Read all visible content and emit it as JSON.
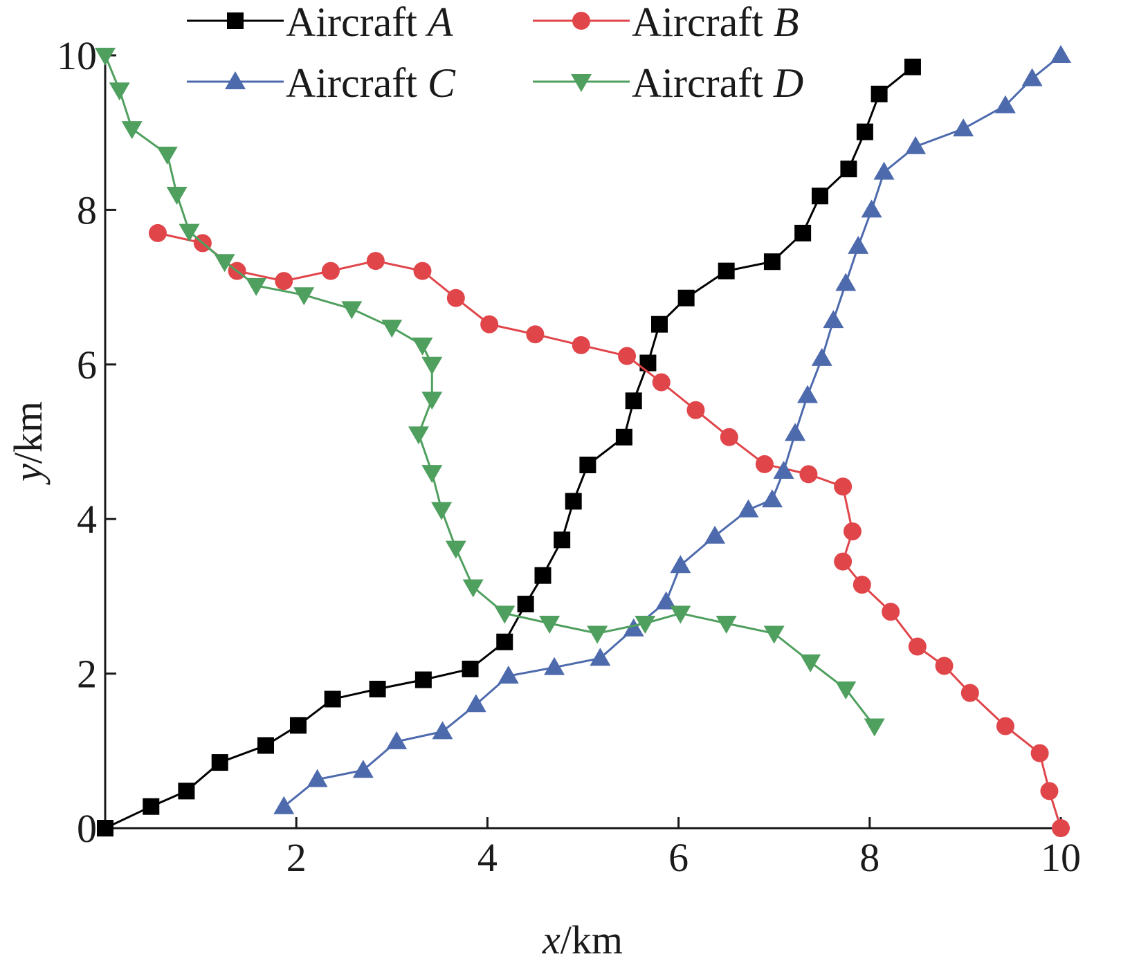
{
  "chart_data": {
    "type": "line",
    "xlabel": {
      "var": "x",
      "unit": "/km"
    },
    "ylabel": {
      "var": "y",
      "unit": "/km"
    },
    "xlim": [
      0,
      10
    ],
    "ylim": [
      0,
      10
    ],
    "xticks": [
      2,
      4,
      6,
      8,
      10
    ],
    "yticks": [
      0,
      2,
      4,
      6,
      8,
      10
    ],
    "grid": false,
    "legend_position": "top",
    "series": [
      {
        "name": "Aircraft A",
        "name_prefix": "Aircraft ",
        "name_letter": "A",
        "color": "#000000",
        "marker": "square",
        "x": [
          0,
          0.48,
          0.85,
          1.2,
          1.68,
          2.02,
          2.38,
          2.85,
          3.33,
          3.82,
          4.18,
          4.4,
          4.58,
          4.78,
          4.9,
          5.05,
          5.43,
          5.53,
          5.68,
          5.8,
          6.08,
          6.5,
          6.98,
          7.3,
          7.48,
          7.78,
          7.95,
          8.1,
          8.45
        ],
        "y": [
          0,
          0.28,
          0.48,
          0.85,
          1.07,
          1.33,
          1.67,
          1.8,
          1.92,
          2.06,
          2.41,
          2.9,
          3.27,
          3.73,
          4.23,
          4.7,
          5.06,
          5.53,
          6.02,
          6.52,
          6.86,
          7.21,
          7.33,
          7.7,
          8.18,
          8.53,
          9.01,
          9.5,
          9.85
        ]
      },
      {
        "name": "Aircraft B",
        "name_prefix": "Aircraft ",
        "name_letter": "B",
        "color": "#e0454a",
        "marker": "circle",
        "x": [
          0.55,
          1.02,
          1.38,
          1.87,
          2.36,
          2.83,
          3.32,
          3.67,
          4.02,
          4.5,
          4.98,
          5.46,
          5.82,
          6.18,
          6.53,
          6.9,
          7.36,
          7.72,
          7.82,
          7.72,
          7.92,
          8.22,
          8.5,
          8.78,
          9.05,
          9.42,
          9.78,
          9.88,
          10.0
        ],
        "y": [
          7.7,
          7.57,
          7.21,
          7.08,
          7.21,
          7.34,
          7.21,
          6.86,
          6.52,
          6.39,
          6.25,
          6.11,
          5.77,
          5.41,
          5.06,
          4.71,
          4.58,
          4.42,
          3.84,
          3.45,
          3.15,
          2.8,
          2.35,
          2.1,
          1.75,
          1.32,
          0.97,
          0.48,
          0.0
        ]
      },
      {
        "name": "Aircraft C",
        "name_prefix": "Aircraft ",
        "name_letter": "C",
        "color": "#4d6aad",
        "marker": "triangle-up",
        "x": [
          1.87,
          2.22,
          2.7,
          3.05,
          3.53,
          3.88,
          4.22,
          4.7,
          5.18,
          5.53,
          5.87,
          6.02,
          6.38,
          6.73,
          6.98,
          7.1,
          7.22,
          7.35,
          7.5,
          7.62,
          7.75,
          7.88,
          8.02,
          8.15,
          8.48,
          8.98,
          9.42,
          9.7,
          10.0
        ],
        "y": [
          0.28,
          0.63,
          0.75,
          1.12,
          1.25,
          1.6,
          1.97,
          2.08,
          2.2,
          2.58,
          2.93,
          3.4,
          3.78,
          4.12,
          4.25,
          4.62,
          5.11,
          5.6,
          6.08,
          6.57,
          7.05,
          7.53,
          8.0,
          8.49,
          8.82,
          9.05,
          9.35,
          9.7,
          10.0
        ]
      },
      {
        "name": "Aircraft D",
        "name_prefix": "Aircraft ",
        "name_letter": "D",
        "color": "#4f9f5e",
        "marker": "triangle-down",
        "x": [
          0.0,
          0.15,
          0.28,
          0.65,
          0.75,
          0.88,
          1.25,
          1.58,
          2.08,
          2.58,
          3.0,
          3.32,
          3.42,
          3.42,
          3.28,
          3.42,
          3.52,
          3.67,
          3.85,
          4.18,
          4.65,
          5.15,
          5.65,
          6.02,
          6.5,
          7.0,
          7.38,
          7.75,
          8.05
        ],
        "y": [
          10.0,
          9.55,
          9.05,
          8.72,
          8.2,
          7.72,
          7.33,
          7.02,
          6.9,
          6.72,
          6.48,
          6.25,
          6.0,
          5.55,
          5.1,
          4.6,
          4.12,
          3.62,
          3.12,
          2.78,
          2.65,
          2.52,
          2.65,
          2.78,
          2.65,
          2.52,
          2.15,
          1.8,
          1.32
        ]
      }
    ]
  }
}
